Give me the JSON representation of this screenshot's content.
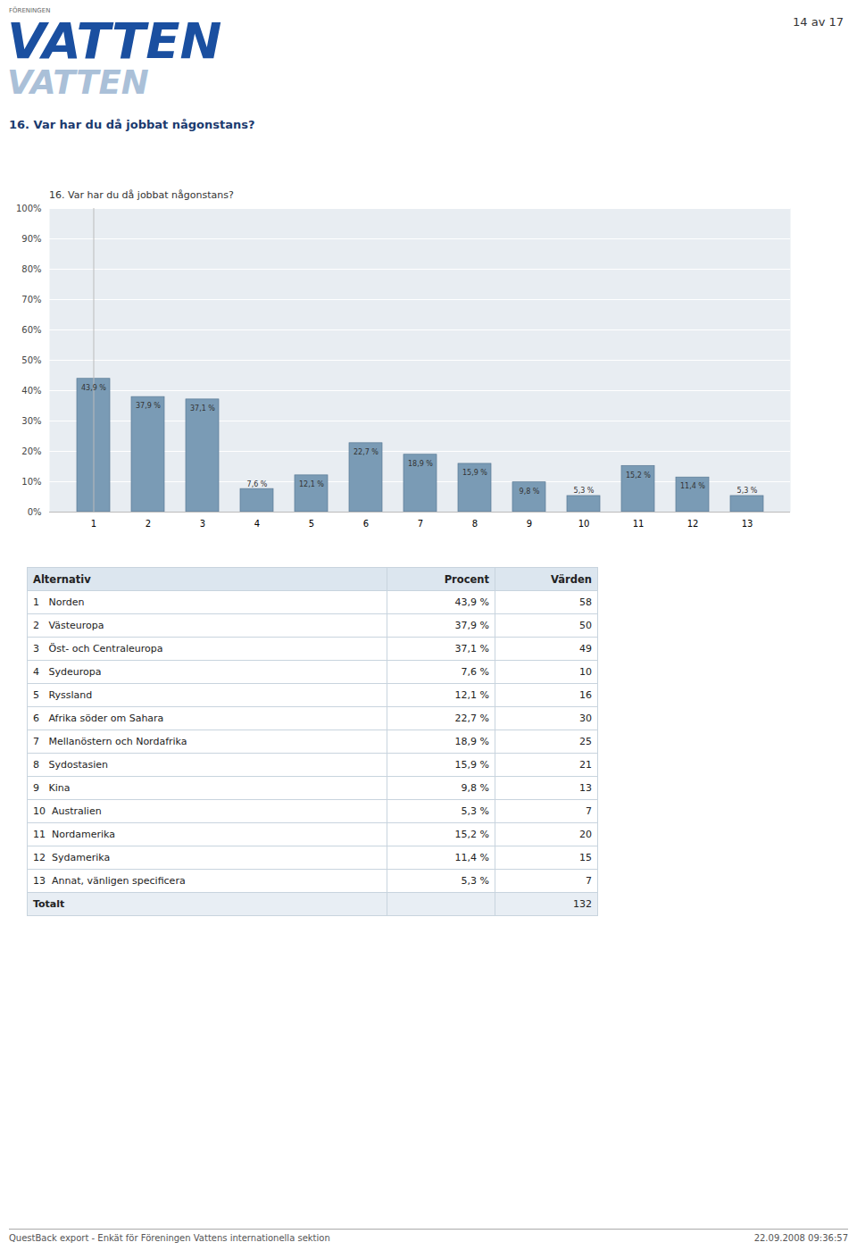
{
  "chart_data": {
    "type": "bar",
    "title": "16. Var har du då jobbat någonstans?",
    "categories": [
      "1",
      "2",
      "3",
      "4",
      "5",
      "6",
      "7",
      "8",
      "9",
      "10",
      "11",
      "12",
      "13"
    ],
    "values": [
      43.9,
      37.9,
      37.1,
      7.6,
      12.1,
      22.7,
      18.9,
      15.9,
      9.8,
      5.3,
      15.2,
      11.4,
      5.3
    ],
    "value_labels": [
      "43,9 %",
      "37,9 %",
      "37,1 %",
      "7,6 %",
      "12,1 %",
      "22,7 %",
      "18,9 %",
      "15,9 %",
      "9,8 %",
      "5,3 %",
      "15,2 %",
      "11,4 %",
      "5,3 %"
    ],
    "data_labels": true,
    "color": "#7a9bb5",
    "ylim": [
      0,
      100
    ],
    "yticks": [
      {
        "value": 0,
        "label": "0%"
      },
      {
        "value": 10,
        "label": "10%"
      },
      {
        "value": 20,
        "label": "20%"
      },
      {
        "value": 30,
        "label": "30%"
      },
      {
        "value": 40,
        "label": "40%"
      },
      {
        "value": 50,
        "label": "50%"
      },
      {
        "value": 60,
        "label": "60%"
      },
      {
        "value": 70,
        "label": "70%"
      },
      {
        "value": 80,
        "label": "80%"
      },
      {
        "value": 90,
        "label": "90%"
      },
      {
        "value": 100,
        "label": "100%"
      }
    ],
    "grid": true,
    "annotations": [
      "14 av 17",
      "FÖRENINGEN",
      "VATTEN",
      "VATTEN",
      "16. Var har du då jobbat någonstans?",
      "QuestBack export - Enkät för Föreningen Vattens internationella sektion",
      "22.09.2008 09:36:57"
    ],
    "table": {
      "columns": [
        "Alternativ",
        "Procent",
        "Värden"
      ],
      "rows": [
        [
          "1   Norden",
          "43,9 %",
          58
        ],
        [
          "2   Västeuropa",
          "37,9 %",
          50
        ],
        [
          "3   Öst- och Centraleuropa",
          "37,1 %",
          49
        ],
        [
          "4   Sydeuropa",
          "7,6 %",
          10
        ],
        [
          "5   Ryssland",
          "12,1 %",
          16
        ],
        [
          "6   Afrika söder om Sahara",
          "22,7 %",
          30
        ],
        [
          "7   Mellanöstern och Nordafrika",
          "18,9 %",
          25
        ],
        [
          "8   Sydostasien",
          "15,9 %",
          21
        ],
        [
          "9   Kina",
          "9,8 %",
          13
        ],
        [
          "10  Australien",
          "5,3 %",
          7
        ],
        [
          "11  Nordamerika",
          "15,2 %",
          20
        ],
        [
          "12  Sydamerika",
          "11,4 %",
          15
        ],
        [
          "13  Annat, vänligen specificera",
          "5,3 %",
          7
        ],
        [
          "Totalt",
          null,
          132
        ]
      ]
    }
  }
}
